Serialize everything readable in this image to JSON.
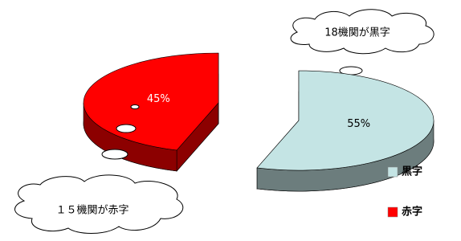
{
  "chart_data": {
    "type": "pie",
    "categories": [
      "黒字",
      "赤字"
    ],
    "values": [
      55,
      45
    ],
    "value_labels": [
      "55%",
      "45%"
    ],
    "colors": [
      "#c4e4e4",
      "#ff0000"
    ],
    "annotations": [
      "18機関が黒字",
      "１５機関が赤字"
    ],
    "legend": "bottom-right"
  }
}
